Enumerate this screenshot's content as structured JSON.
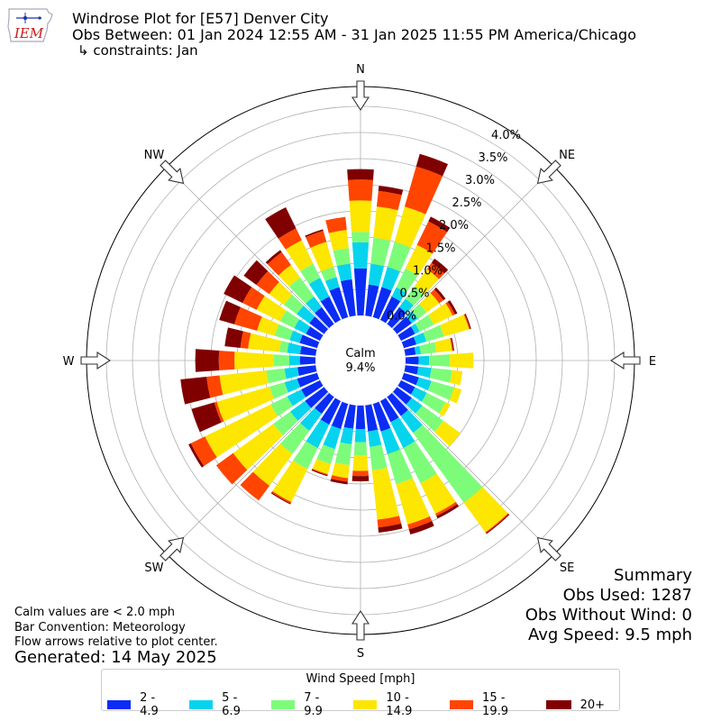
{
  "header": {
    "title": "Windrose Plot for [E57] Denver City",
    "subtitle": "Obs Between: 01 Jan 2024 12:55 AM - 31 Jan 2025 11:55 PM America/Chicago",
    "constraints": "↳ constraints: Jan",
    "logo_text": "IEM"
  },
  "footer_left": {
    "calm_note": "Calm values are < 2.0 mph",
    "bar_convention": "Bar Convention: Meteorology",
    "flow_note": "Flow arrows relative to plot center.",
    "generated": "Generated: 14 May 2025"
  },
  "summary": {
    "heading": "Summary",
    "obs_used": "Obs Used: 1287",
    "obs_without_wind": "Obs Without Wind: 0",
    "avg_speed": "Avg Speed: 9.5 mph"
  },
  "center": {
    "label": "Calm",
    "value": "9.4%"
  },
  "legend": {
    "title": "Wind Speed [mph]",
    "items": [
      {
        "label": "2 - 4.9",
        "color": "#0a2cf5"
      },
      {
        "label": "5 - 6.9",
        "color": "#06d4ee"
      },
      {
        "label": "7 - 9.9",
        "color": "#7dfc7a"
      },
      {
        "label": "10 - 14.9",
        "color": "#fde600"
      },
      {
        "label": "15 - 19.9",
        "color": "#ff4500"
      },
      {
        "label": "20+",
        "color": "#800000"
      }
    ]
  },
  "chart_data": {
    "type": "windrose",
    "calm_percent": 9.4,
    "radial_unit": "%",
    "radial_ticks": [
      "0.0%",
      "0.5%",
      "1.0%",
      "1.5%",
      "2.0%",
      "2.5%",
      "3.0%",
      "3.5%",
      "4.0%"
    ],
    "rlim": [
      0,
      4.4
    ],
    "compass_labels": [
      {
        "label": "N",
        "deg": 0
      },
      {
        "label": "NE",
        "deg": 45
      },
      {
        "label": "E",
        "deg": 90
      },
      {
        "label": "SE",
        "deg": 135
      },
      {
        "label": "S",
        "deg": 180
      },
      {
        "label": "SW",
        "deg": 225
      },
      {
        "label": "W",
        "deg": 270
      },
      {
        "label": "NW",
        "deg": 315
      }
    ],
    "speed_bins": [
      "2 - 4.9",
      "5 - 6.9",
      "7 - 9.9",
      "10 - 14.9",
      "15 - 19.9",
      "20+"
    ],
    "directions_deg": [
      0,
      10,
      20,
      30,
      40,
      50,
      60,
      70,
      80,
      90,
      100,
      110,
      120,
      130,
      140,
      150,
      160,
      170,
      180,
      190,
      200,
      210,
      220,
      230,
      240,
      250,
      260,
      270,
      280,
      290,
      300,
      310,
      320,
      330,
      340,
      350
    ],
    "cumulative_percent": [
      [
        0.9,
        1.4,
        1.6,
        2.2,
        2.6,
        2.8
      ],
      [
        0.6,
        1.0,
        1.5,
        2.1,
        2.4,
        2.5
      ],
      [
        0.6,
        1.0,
        1.5,
        2.2,
        3.0,
        3.25
      ],
      [
        0.5,
        0.7,
        1.1,
        1.6,
        2.1,
        2.2
      ],
      [
        0.4,
        0.6,
        0.9,
        1.3,
        1.45,
        1.55
      ],
      [
        0.35,
        0.5,
        0.7,
        1.0,
        1.1,
        1.15
      ],
      [
        0.3,
        0.4,
        0.7,
        1.1,
        1.15,
        1.2
      ],
      [
        0.25,
        0.45,
        0.8,
        1.3,
        1.32,
        1.34
      ],
      [
        0.2,
        0.3,
        0.6,
        0.9,
        0.92,
        0.94
      ],
      [
        0.25,
        0.45,
        0.85,
        1.3,
        1.3,
        1.3
      ],
      [
        0.25,
        0.5,
        0.9,
        1.1,
        1.1,
        1.1
      ],
      [
        0.3,
        0.55,
        1.0,
        1.15,
        1.15,
        1.15
      ],
      [
        0.3,
        0.55,
        0.95,
        1.05,
        1.05,
        1.05
      ],
      [
        0.35,
        0.6,
        1.1,
        1.5,
        1.5,
        1.5
      ],
      [
        0.45,
        0.85,
        2.5,
        3.2,
        3.22,
        3.24
      ],
      [
        0.45,
        1.0,
        1.75,
        2.4,
        2.45,
        2.5
      ],
      [
        0.55,
        1.0,
        1.6,
        2.4,
        2.5,
        2.6
      ],
      [
        0.5,
        0.8,
        1.25,
        2.2,
        2.35,
        2.45
      ],
      [
        0.45,
        0.7,
        0.95,
        1.25,
        1.35,
        1.45
      ],
      [
        0.45,
        0.75,
        1.15,
        1.4,
        1.47,
        1.52
      ],
      [
        0.5,
        0.9,
        1.2,
        1.4,
        1.42,
        1.44
      ],
      [
        0.5,
        1.0,
        1.45,
        2.15,
        2.18,
        2.2
      ],
      [
        0.4,
        0.8,
        1.35,
        2.1,
        2.45,
        2.45
      ],
      [
        0.45,
        0.8,
        1.2,
        2.15,
        2.55,
        2.55
      ],
      [
        0.4,
        0.7,
        1.05,
        2.45,
        2.75,
        2.8
      ],
      [
        0.4,
        0.65,
        0.95,
        2.0,
        2.05,
        2.5
      ],
      [
        0.35,
        0.6,
        0.95,
        1.85,
        2.1,
        2.6
      ],
      [
        0.3,
        0.5,
        0.8,
        1.55,
        1.85,
        2.3
      ],
      [
        0.3,
        0.55,
        0.7,
        1.3,
        1.45,
        1.75
      ],
      [
        0.35,
        0.55,
        0.85,
        1.2,
        1.65,
        1.95
      ],
      [
        0.3,
        0.55,
        0.85,
        1.35,
        1.65,
        2.05
      ],
      [
        0.35,
        0.65,
        0.95,
        1.3,
        1.6,
        1.9
      ],
      [
        0.4,
        0.65,
        1.1,
        1.4,
        1.7,
        1.75
      ],
      [
        0.5,
        0.9,
        1.2,
        1.7,
        1.95,
        2.4
      ],
      [
        0.6,
        0.8,
        1.0,
        1.5,
        1.72,
        1.75
      ],
      [
        0.7,
        1.0,
        1.3,
        1.65,
        1.9,
        1.9
      ]
    ]
  }
}
